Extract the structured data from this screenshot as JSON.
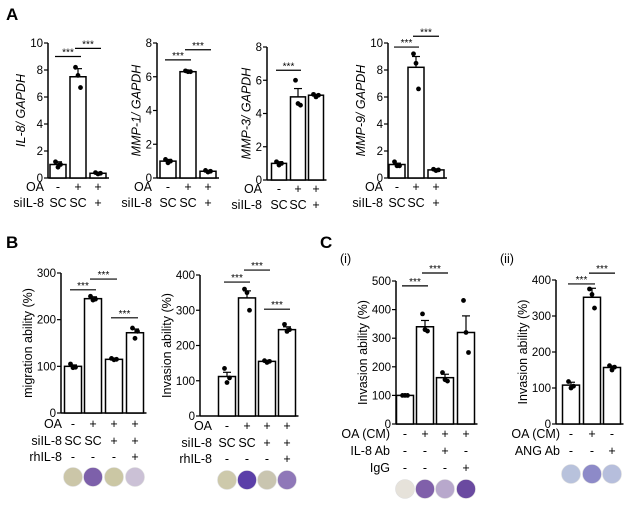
{
  "panels": {
    "A": "A",
    "B": "B",
    "C": "C",
    "Ci": "(i)",
    "Cii": "(ii)"
  },
  "chart_data": [
    {
      "id": "A1",
      "type": "bar",
      "ylabel": "IL-8/ GAPDH",
      "italic": true,
      "ylim": [
        0,
        10
      ],
      "ticks": [
        0,
        2,
        4,
        6,
        8,
        10
      ],
      "rows": [
        {
          "label": "OA",
          "values": [
            "-",
            "+",
            "+"
          ]
        },
        {
          "label": "siIL-8",
          "values": [
            "SC",
            "SC",
            "+"
          ]
        }
      ],
      "values": [
        1.0,
        7.5,
        0.35
      ],
      "errors": [
        0.2,
        0.6,
        0.05
      ],
      "points": [
        [
          1.2,
          0.8,
          1.0
        ],
        [
          8.2,
          7.6,
          6.7
        ],
        [
          0.4,
          0.3,
          0.35
        ]
      ],
      "significance": [
        {
          "pair": [
            0,
            1
          ],
          "y": 9.0,
          "label": "***"
        },
        {
          "pair": [
            1,
            2
          ],
          "y": 9.6,
          "label": "***"
        }
      ]
    },
    {
      "id": "A2",
      "type": "bar",
      "ylabel": "MMP-1/ GAPDH",
      "italic": true,
      "ylim": [
        0,
        8
      ],
      "ticks": [
        0,
        2,
        4,
        6,
        8
      ],
      "rows": [
        {
          "label": "OA",
          "values": [
            "-",
            "+",
            "+"
          ]
        },
        {
          "label": "siIL-8",
          "values": [
            "SC",
            "SC",
            "+"
          ]
        }
      ],
      "values": [
        1.0,
        6.3,
        0.4
      ],
      "errors": [
        0.1,
        0.05,
        0.05
      ],
      "points": [
        [
          1.1,
          0.9,
          1.0
        ],
        [
          6.35,
          6.3,
          6.3
        ],
        [
          0.45,
          0.35,
          0.4
        ]
      ],
      "significance": [
        {
          "pair": [
            0,
            1
          ],
          "y": 7.0,
          "label": "***"
        },
        {
          "pair": [
            1,
            2
          ],
          "y": 7.6,
          "label": "***"
        }
      ]
    },
    {
      "id": "A3",
      "type": "bar",
      "ylabel": "MMP-3/ GAPDH",
      "italic": true,
      "ylim": [
        0,
        8
      ],
      "ticks": [
        0,
        2,
        4,
        6,
        8
      ],
      "rows": [
        {
          "label": "OA",
          "values": [
            "-",
            "+",
            "+"
          ]
        },
        {
          "label": "siIL-8",
          "values": [
            "SC",
            "SC",
            "+"
          ]
        }
      ],
      "values": [
        1.0,
        5.0,
        5.1
      ],
      "errors": [
        0.1,
        0.5,
        0.05
      ],
      "points": [
        [
          1.1,
          0.9,
          1.0
        ],
        [
          6.0,
          4.6,
          4.5
        ],
        [
          5.15,
          5.0,
          5.1
        ]
      ],
      "significance": [
        {
          "pair": [
            0,
            1
          ],
          "y": 6.6,
          "label": "***"
        }
      ]
    },
    {
      "id": "A4",
      "type": "bar",
      "ylabel": "MMP-9/ GAPDH",
      "italic": true,
      "ylim": [
        0,
        10
      ],
      "ticks": [
        0,
        2,
        4,
        6,
        8,
        10
      ],
      "rows": [
        {
          "label": "OA",
          "values": [
            "-",
            "+",
            "+"
          ]
        },
        {
          "label": "siIL-8",
          "values": [
            "SC",
            "SC",
            "+"
          ]
        }
      ],
      "values": [
        1.0,
        8.2,
        0.6
      ],
      "errors": [
        0.1,
        0.8,
        0.05
      ],
      "points": [
        [
          1.2,
          0.9,
          0.9
        ],
        [
          9.2,
          8.5,
          6.6
        ],
        [
          0.65,
          0.55,
          0.6
        ]
      ],
      "significance": [
        {
          "pair": [
            0,
            1
          ],
          "y": 9.7,
          "label": "***"
        },
        {
          "pair": [
            1,
            2
          ],
          "y": 10.5,
          "label": "***"
        }
      ]
    },
    {
      "id": "B1",
      "type": "bar",
      "ylabel": "migration ability (%)",
      "italic": false,
      "ylim": [
        0,
        300
      ],
      "ticks": [
        0,
        100,
        200,
        300
      ],
      "rows": [
        {
          "label": "OA",
          "values": [
            "-",
            "+",
            "+",
            "+"
          ]
        },
        {
          "label": "siIL-8",
          "values": [
            "SC",
            "SC",
            "+",
            "+"
          ]
        },
        {
          "label": "rhIL-8",
          "values": [
            "-",
            "-",
            "-",
            "+"
          ]
        }
      ],
      "values": [
        100,
        245,
        115,
        172
      ],
      "errors": [
        3,
        4,
        2,
        8
      ],
      "points": [
        [
          105,
          97,
          98
        ],
        [
          250,
          242,
          244
        ],
        [
          117,
          114,
          115
        ],
        [
          182,
          160,
          175
        ]
      ],
      "significance": [
        {
          "pair": [
            0,
            1
          ],
          "y": 264,
          "label": "***"
        },
        {
          "pair": [
            1,
            2
          ],
          "y": 287,
          "label": "***"
        },
        {
          "pair": [
            2,
            3
          ],
          "y": 204,
          "label": "***"
        }
      ],
      "wells": [
        "#cbc6a8",
        "#7d60aa",
        "#cbc7a4",
        "#cbc1d6"
      ]
    },
    {
      "id": "B2",
      "type": "bar",
      "ylabel": "Invasion ability (%)",
      "italic": false,
      "ylim": [
        0,
        400
      ],
      "ticks": [
        0,
        100,
        200,
        300,
        400
      ],
      "rows": [
        {
          "label": "OA",
          "values": [
            "-",
            "+",
            "+",
            "+"
          ]
        },
        {
          "label": "siIL-8",
          "values": [
            "SC",
            "SC",
            "+",
            "+"
          ]
        },
        {
          "label": "rhIL-8",
          "values": [
            "-",
            "-",
            "-",
            "+"
          ]
        }
      ],
      "values": [
        112,
        335,
        155,
        245
      ],
      "errors": [
        12,
        20,
        3,
        8
      ],
      "points": [
        [
          135,
          95,
          108
        ],
        [
          360,
          350,
          300
        ],
        [
          157,
          152,
          155
        ],
        [
          260,
          240,
          245
        ]
      ],
      "significance": [
        {
          "pair": [
            0,
            1
          ],
          "y": 380,
          "label": "***"
        },
        {
          "pair": [
            1,
            2
          ],
          "y": 414,
          "label": "***"
        },
        {
          "pair": [
            2,
            3
          ],
          "y": 303,
          "label": "***"
        }
      ],
      "wells": [
        "#cdc9ab",
        "#5b3fa8",
        "#c9c5b0",
        "#8f78b8"
      ]
    },
    {
      "id": "C1",
      "type": "bar",
      "ylabel": "Invasion ability (%)",
      "italic": false,
      "ylim": [
        0,
        500
      ],
      "ticks": [
        0,
        100,
        200,
        300,
        400,
        500
      ],
      "rows": [
        {
          "label": "OA (CM)",
          "values": [
            "-",
            "+",
            "+",
            "+"
          ]
        },
        {
          "label": "IL-8 Ab",
          "values": [
            "-",
            "-",
            "+",
            "-"
          ]
        },
        {
          "label": "IgG",
          "values": [
            "-",
            "-",
            "-",
            "+"
          ]
        }
      ],
      "values": [
        100,
        340,
        162,
        320
      ],
      "errors": [
        0,
        22,
        12,
        58
      ],
      "points": [
        [
          100,
          100,
          100
        ],
        [
          385,
          330,
          325
        ],
        [
          180,
          155,
          150
        ],
        [
          432,
          320,
          250
        ]
      ],
      "significance": [
        {
          "pair": [
            0,
            1
          ],
          "y": 483,
          "label": "***"
        },
        {
          "pair": [
            1,
            2
          ],
          "y": 528,
          "label": "***"
        }
      ],
      "wells": [
        "#e6e2da",
        "#8060aa",
        "#b8a8cc",
        "#6a4aa0"
      ]
    },
    {
      "id": "C2",
      "type": "bar",
      "ylabel": "Invasion ability (%)",
      "italic": false,
      "ylim": [
        0,
        400
      ],
      "ticks": [
        0,
        100,
        200,
        300,
        400
      ],
      "rows": [
        {
          "label": "OA (CM)",
          "values": [
            "-",
            "+",
            "-"
          ]
        },
        {
          "label": "ANG Ab",
          "values": [
            "-",
            "-",
            "+"
          ]
        }
      ],
      "values": [
        108,
        352,
        157
      ],
      "errors": [
        8,
        25,
        4
      ],
      "points": [
        [
          118,
          100,
          105
        ],
        [
          375,
          360,
          322
        ],
        [
          162,
          150,
          158
        ]
      ],
      "significance": [
        {
          "pair": [
            0,
            1
          ],
          "y": 389,
          "label": "***"
        },
        {
          "pair": [
            1,
            2
          ],
          "y": 419,
          "label": "***"
        }
      ],
      "wells": [
        "#b8c2dc",
        "#8d8ac8",
        "#b6bedc"
      ]
    }
  ]
}
